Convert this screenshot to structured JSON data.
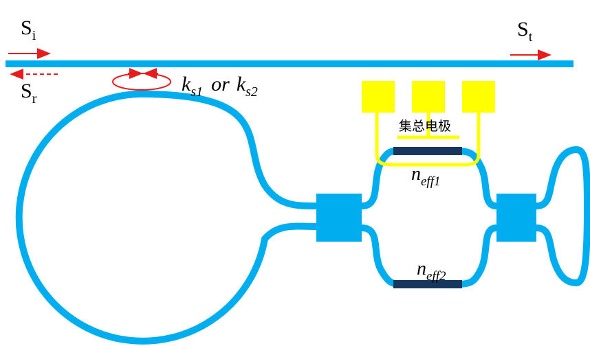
{
  "labels": {
    "s_i_main": "S",
    "s_i_sub": "i",
    "s_t_main": "S",
    "s_t_sub": "t",
    "s_r_main": "S",
    "s_r_sub": "r",
    "k_main1": "k",
    "k_sub1": "s1",
    "k_or": "or",
    "k_main2": "k",
    "k_sub2": "s2",
    "electrode": "集总电极",
    "neff1_main": "n",
    "neff1_sub": "eff1",
    "neff2_main": "n",
    "neff2_sub": "eff2"
  },
  "colors": {
    "waveguide": "#00adef",
    "arrow": "#e81c1c",
    "electrode": "#ffff00",
    "phase_section": "#17375e"
  }
}
